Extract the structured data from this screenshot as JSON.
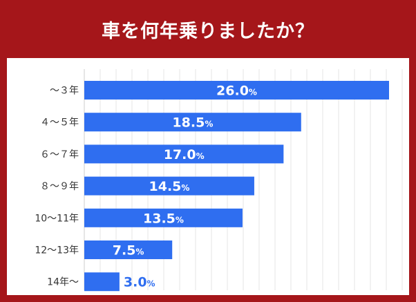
{
  "chart_data": {
    "type": "bar",
    "orientation": "horizontal",
    "title": "車を何年乗りましたか？",
    "categories": [
      "～３年",
      "４～５年",
      "６～７年",
      "８～９年",
      "10～11年",
      "12～13年",
      "14年～"
    ],
    "values": [
      26.0,
      18.5,
      17.0,
      14.5,
      13.5,
      7.5,
      3.0
    ],
    "value_labels": [
      "26.0",
      "18.5",
      "17.0",
      "14.5",
      "13.5",
      "7.5",
      "3.0"
    ],
    "unit": "%",
    "xlim": [
      0,
      26.0
    ],
    "grid": true,
    "legend": "none",
    "colors": {
      "bar": "#2f6ef0",
      "header": "#a5161a",
      "label_inside": "#ffffff",
      "label_outside": "#2f6ef0",
      "grid": "#e6e6e6"
    }
  }
}
